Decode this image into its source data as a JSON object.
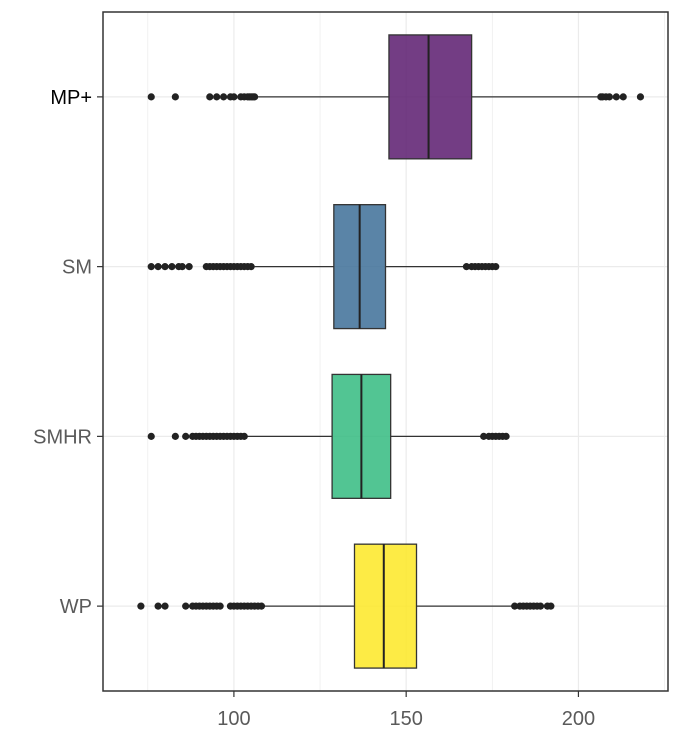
{
  "chart_data": {
    "type": "boxplot",
    "orientation": "horizontal",
    "title": "",
    "xlabel": "",
    "ylabel": "",
    "xlim": [
      62,
      226
    ],
    "x_ticks": [
      100,
      150,
      200
    ],
    "grid": true,
    "legend": "none",
    "series": [
      {
        "name": "MP+",
        "label_dark": true,
        "color": "#5b1b6e",
        "q1": 145,
        "median": 156.5,
        "q3": 169,
        "whisker_low": 107,
        "whisker_high": 206,
        "outliers": [
          76,
          83,
          93,
          95,
          97,
          99,
          100,
          102,
          103,
          104,
          104.5,
          105,
          105.5,
          106,
          206.5,
          207,
          208,
          209,
          211,
          213,
          218
        ]
      },
      {
        "name": "SM",
        "label_dark": false,
        "color": "#3d6f98",
        "q1": 129,
        "median": 136.5,
        "q3": 144,
        "whisker_low": 106,
        "whisker_high": 167,
        "outliers": [
          76,
          78,
          80,
          82,
          84,
          85,
          87,
          92,
          93,
          94,
          95,
          96,
          97,
          98,
          99,
          100,
          101,
          102,
          103,
          104,
          105,
          167.5,
          169,
          170,
          171,
          172,
          173,
          174,
          175,
          176
        ]
      },
      {
        "name": "SMHR",
        "label_dark": false,
        "color": "#34bb80",
        "q1": 128.5,
        "median": 137,
        "q3": 145.5,
        "whisker_low": 103,
        "whisker_high": 172,
        "outliers": [
          76,
          83,
          86,
          88,
          89,
          90,
          91,
          92,
          93,
          94,
          95,
          96,
          97,
          98,
          99,
          100,
          101,
          102,
          103,
          172.5,
          174,
          175,
          176,
          177,
          178,
          179
        ]
      },
      {
        "name": "WP",
        "label_dark": false,
        "color": "#fde725",
        "q1": 135,
        "median": 143.5,
        "q3": 153,
        "whisker_low": 108,
        "whisker_high": 181,
        "outliers": [
          73,
          78,
          80,
          86,
          88,
          89,
          90,
          91,
          92,
          93,
          94,
          95,
          96,
          99,
          100,
          101,
          102,
          103,
          104,
          105,
          106,
          107,
          108,
          181.5,
          183,
          184,
          185,
          186,
          187,
          188,
          189,
          191,
          192
        ]
      }
    ]
  }
}
